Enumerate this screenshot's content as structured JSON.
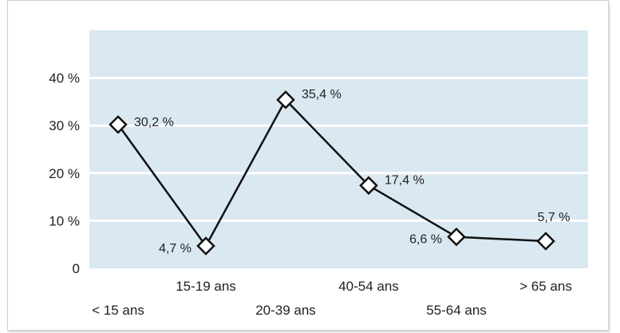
{
  "chart_data": {
    "type": "line",
    "title": "",
    "xlabel": "",
    "ylabel": "",
    "categories": [
      "< 15 ans",
      "15-19 ans",
      "20-39 ans",
      "40-54 ans",
      "55-64 ans",
      "> 65 ans"
    ],
    "values": [
      30.2,
      4.7,
      35.4,
      17.4,
      6.6,
      5.7
    ],
    "data_labels": [
      "30,2 %",
      "4,7 %",
      "35,4 %",
      "17,4 %",
      "6,6 %",
      "5,7 %"
    ],
    "ylim": [
      0,
      50
    ],
    "y_ticks": [
      0,
      10,
      20,
      30,
      40
    ],
    "y_tick_labels": [
      "0",
      "10 %",
      "20 %",
      "30 %",
      "40 %"
    ],
    "grid": true,
    "legend": "none",
    "colors": {
      "plot_background": "#d9e8f1",
      "grid": "#ffffff",
      "line": "#111111",
      "marker_fill": "#ffffff",
      "marker_stroke": "#111111"
    }
  }
}
